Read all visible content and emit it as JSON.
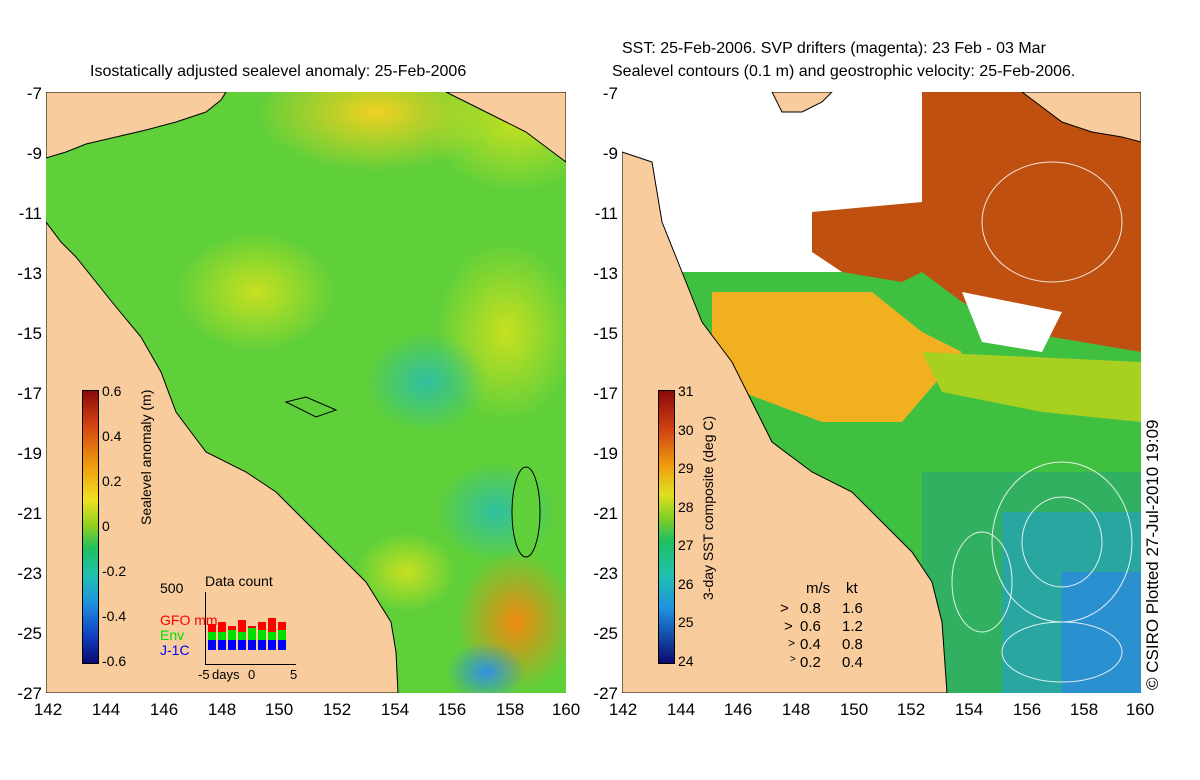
{
  "left_panel": {
    "title": "Isostatically adjusted sealevel anomaly: 25-Feb-2006",
    "colorbar_label": "Sealevel anomaly (m)",
    "colorbar_ticks": [
      "0.6",
      "0.4",
      "0.2",
      "0",
      "-0.2",
      "-0.4",
      "-0.6"
    ],
    "data_count": {
      "title": "Data count",
      "scale_max": "500",
      "satellites": [
        {
          "name": "GFO mm",
          "color": "#ff0000"
        },
        {
          "name": "Env",
          "color": "#00e000"
        },
        {
          "name": "J-1C",
          "color": "#0000ff"
        }
      ],
      "x_labels": [
        "-5",
        "days",
        "0",
        "5"
      ]
    }
  },
  "right_panel": {
    "title_line1": "SST: 25-Feb-2006. SVP drifters (magenta): 23 Feb - 03 Mar",
    "title_line2": "Sealevel contours (0.1 m) and geostrophic velocity: 25-Feb-2006.",
    "colorbar_label": "3-day SST composite (deg C)",
    "colorbar_ticks": [
      "31",
      "30",
      "29",
      "28",
      "27",
      "26",
      "25",
      "24"
    ],
    "velocity_legend": {
      "units": [
        "m/s",
        "kt"
      ],
      "rows": [
        {
          "ms": "0.8",
          "kt": "1.6"
        },
        {
          "ms": "0.6",
          "kt": "1.2"
        },
        {
          "ms": "0.4",
          "kt": "0.8"
        },
        {
          "ms": "0.2",
          "kt": "0.4"
        }
      ]
    }
  },
  "axes": {
    "lat_ticks": [
      "-7",
      "-9",
      "-11",
      "-13",
      "-15",
      "-17",
      "-19",
      "-21",
      "-23",
      "-25",
      "-27"
    ],
    "lon_ticks": [
      "142",
      "144",
      "146",
      "148",
      "150",
      "152",
      "154",
      "156",
      "158",
      "160"
    ],
    "lat_range": [
      -27,
      -7
    ],
    "lon_range": [
      142,
      160
    ]
  },
  "credit": "© CSIRO Plotted 27-Jul-2010 19:09",
  "colors": {
    "land": "#f8cc9c",
    "sea_anomaly_base": "#5fd03a",
    "sst_warm": "#b83a0a",
    "sst_cloud": "#ffffff"
  }
}
